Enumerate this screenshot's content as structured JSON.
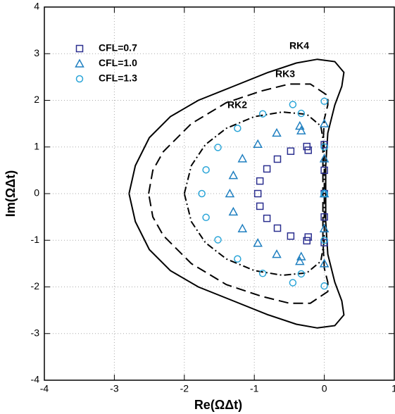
{
  "chart_data": {
    "type": "scatter",
    "xlabel": "Re(ΩΔt)",
    "ylabel": "Im(ΩΔt)",
    "xlim": [
      -4,
      1
    ],
    "ylim": [
      -4,
      4
    ],
    "xticks": [
      -4,
      -3,
      -2,
      -1,
      0,
      1
    ],
    "yticks": [
      -4,
      -3,
      -2,
      -1,
      0,
      1,
      2,
      3,
      4
    ],
    "grid": true,
    "legend": "upper left",
    "curves": [
      {
        "name": "RK4",
        "color": "#000000",
        "dash": "solid",
        "x": [
          -2.79,
          -2.7,
          -2.5,
          -2.2,
          -1.8,
          -1.3,
          -0.8,
          -0.4,
          -0.1,
          0.15,
          0.28,
          0.25,
          0.15,
          0.05,
          0.02,
          0.02,
          0.02,
          0.05,
          0.15,
          0.25,
          0.28,
          0.15,
          -0.1,
          -0.4,
          -0.8,
          -1.3,
          -1.8,
          -2.2,
          -2.5,
          -2.7,
          -2.79
        ],
        "y": [
          0,
          0.6,
          1.2,
          1.65,
          2.0,
          2.3,
          2.6,
          2.8,
          2.88,
          2.83,
          2.6,
          2.3,
          1.9,
          1.3,
          0.6,
          0,
          -0.6,
          -1.3,
          -1.9,
          -2.3,
          -2.6,
          -2.83,
          -2.88,
          -2.8,
          -2.6,
          -2.3,
          -2.0,
          -1.65,
          -1.2,
          -0.6,
          0
        ]
      },
      {
        "name": "RK3",
        "color": "#000000",
        "dash": "dash",
        "x": [
          -2.51,
          -2.45,
          -2.3,
          -1.9,
          -1.4,
          -0.9,
          -0.5,
          -0.2,
          0.05,
          0.05,
          0.0,
          -0.02,
          -0.02,
          -0.02,
          0.0,
          0.05,
          0.05,
          -0.2,
          -0.5,
          -0.9,
          -1.4,
          -1.9,
          -2.3,
          -2.45,
          -2.51
        ],
        "y": [
          0,
          0.5,
          0.9,
          1.5,
          1.95,
          2.2,
          2.35,
          2.35,
          2.1,
          1.9,
          1.6,
          1.0,
          0,
          -1.0,
          -1.6,
          -1.9,
          -2.1,
          -2.35,
          -2.35,
          -2.2,
          -1.95,
          -1.5,
          -0.9,
          -0.5,
          0
        ]
      },
      {
        "name": "RK2",
        "color": "#000000",
        "dash": "dashdot",
        "x": [
          -2.0,
          -1.9,
          -1.7,
          -1.4,
          -1.0,
          -0.6,
          -0.25,
          -0.05,
          0.0,
          0.0,
          0.0,
          -0.05,
          -0.25,
          -0.6,
          -1.0,
          -1.4,
          -1.7,
          -1.9,
          -2.0
        ],
        "y": [
          0,
          0.6,
          1.05,
          1.4,
          1.65,
          1.75,
          1.7,
          1.45,
          1.0,
          0,
          -1.0,
          -1.45,
          -1.7,
          -1.75,
          -1.65,
          -1.4,
          -1.05,
          -0.6,
          0
        ]
      }
    ],
    "series": [
      {
        "name": "CFL=0.7",
        "color": "#2b2f8f",
        "marker": "square",
        "x": [
          0,
          -0.25,
          -0.48,
          -0.67,
          -0.82,
          -0.92,
          -0.95,
          -0.92,
          -0.82,
          -0.67,
          -0.48,
          -0.25,
          0,
          0,
          0,
          0,
          -0.23,
          -0.23
        ],
        "y": [
          1.05,
          1.01,
          0.91,
          0.74,
          0.53,
          0.27,
          0,
          -0.27,
          -0.53,
          -0.74,
          -0.91,
          -1.01,
          -1.05,
          0.5,
          0,
          -0.5,
          0.93,
          -0.93
        ]
      },
      {
        "name": "CFL=1.0",
        "color": "#1f7fc0",
        "marker": "triangle",
        "x": [
          0,
          -0.35,
          -0.68,
          -0.95,
          -1.17,
          -1.3,
          -1.35,
          -1.3,
          -1.17,
          -0.95,
          -0.68,
          -0.35,
          0,
          0,
          0,
          0,
          -0.33,
          -0.33
        ],
        "y": [
          1.5,
          1.45,
          1.3,
          1.06,
          0.75,
          0.39,
          0,
          -0.39,
          -0.75,
          -1.06,
          -1.3,
          -1.45,
          -1.5,
          0.75,
          0,
          -0.75,
          1.35,
          -1.35
        ]
      },
      {
        "name": "CFL=1.3",
        "color": "#2aa5d8",
        "marker": "circle",
        "x": [
          0,
          -0.45,
          -0.88,
          -1.24,
          -1.52,
          -1.69,
          -1.75,
          -1.69,
          -1.52,
          -1.24,
          -0.88,
          -0.45,
          0,
          0,
          0,
          0,
          -0.33,
          -0.33
        ],
        "y": [
          1.98,
          1.91,
          1.71,
          1.4,
          0.99,
          0.51,
          0,
          -0.51,
          -0.99,
          -1.4,
          -1.71,
          -1.91,
          -1.98,
          1.0,
          0,
          -1.0,
          1.72,
          -1.72
        ]
      }
    ]
  }
}
